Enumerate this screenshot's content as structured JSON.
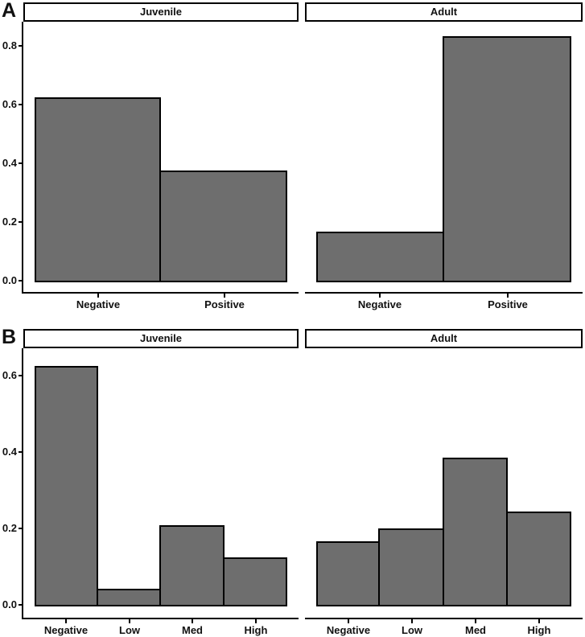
{
  "chart_data": [
    {
      "type": "bar",
      "panel_label": "A",
      "facet_labels": [
        "Juvenile",
        "Adult"
      ],
      "categories": [
        "Negative",
        "Positive"
      ],
      "facets": [
        {
          "strip_label": "Juvenile",
          "categories": [
            "Negative",
            "Positive"
          ],
          "values": [
            0.625,
            0.375
          ]
        },
        {
          "strip_label": "Adult",
          "categories": [
            "Negative",
            "Positive"
          ],
          "values": [
            0.167,
            0.833
          ]
        }
      ],
      "series": [
        {
          "name": "Juvenile",
          "values": [
            0.625,
            0.375
          ]
        },
        {
          "name": "Adult",
          "values": [
            0.167,
            0.833
          ]
        }
      ],
      "title": "",
      "xlabel": "",
      "ylabel": "",
      "y_ticks": [
        "0.0",
        "0.2",
        "0.4",
        "0.6",
        "0.8"
      ],
      "ylim": [
        0,
        0.88
      ],
      "grid": false,
      "legend": "none",
      "bar_fill": "#6e6e6e",
      "bar_border": "#000000"
    },
    {
      "type": "bar",
      "panel_label": "B",
      "facet_labels": [
        "Juvenile",
        "Adult"
      ],
      "categories": [
        "Negative",
        "Low",
        "Med",
        "High"
      ],
      "facets": [
        {
          "strip_label": "Juvenile",
          "categories": [
            "Negative",
            "Low",
            "Med",
            "High"
          ],
          "values": [
            0.625,
            0.042,
            0.208,
            0.125
          ]
        },
        {
          "strip_label": "Adult",
          "categories": [
            "Negative",
            "Low",
            "Med",
            "High"
          ],
          "values": [
            0.167,
            0.2,
            0.385,
            0.245
          ]
        }
      ],
      "series": [
        {
          "name": "Juvenile",
          "values": [
            0.625,
            0.042,
            0.208,
            0.125
          ]
        },
        {
          "name": "Adult",
          "values": [
            0.167,
            0.2,
            0.385,
            0.245
          ]
        }
      ],
      "title": "",
      "xlabel": "",
      "ylabel": "",
      "y_ticks": [
        "0.0",
        "0.2",
        "0.4",
        "0.6"
      ],
      "ylim": [
        0,
        0.67
      ],
      "grid": false,
      "legend": "none",
      "bar_fill": "#6e6e6e",
      "bar_border": "#000000"
    }
  ]
}
